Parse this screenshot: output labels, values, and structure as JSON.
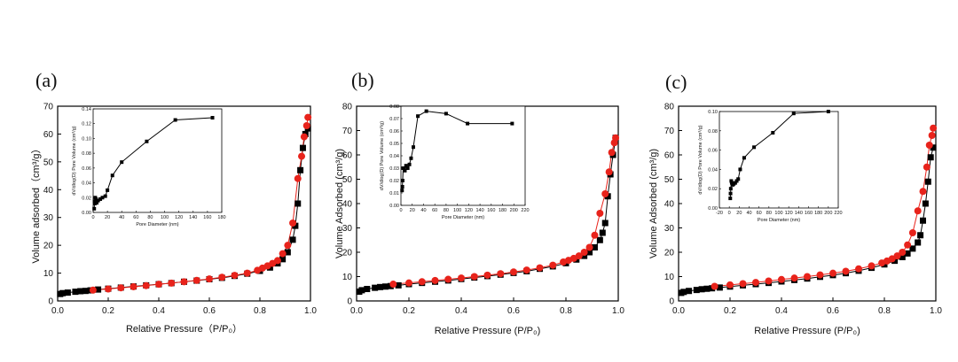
{
  "chart_data": [
    {
      "type": "scatter",
      "panel_label": "(a)",
      "xlabel": "Relative Pressure（P/P₀）",
      "ylabel": "Volume adsorbed（cm³/g）",
      "xlim": [
        0,
        1.0
      ],
      "ylim": [
        0,
        70
      ],
      "xticks": [
        "0.0",
        "0.2",
        "0.4",
        "0.6",
        "0.8",
        "1.0"
      ],
      "yticks": [
        "0",
        "10",
        "20",
        "30",
        "40",
        "50",
        "60",
        "70"
      ],
      "series": [
        {
          "name": "adsorption",
          "marker": "square",
          "color": "#000000",
          "x": [
            0.01,
            0.02,
            0.04,
            0.07,
            0.09,
            0.11,
            0.13,
            0.16,
            0.2,
            0.25,
            0.3,
            0.35,
            0.4,
            0.45,
            0.5,
            0.55,
            0.6,
            0.65,
            0.7,
            0.75,
            0.8,
            0.84,
            0.87,
            0.89,
            0.91,
            0.93,
            0.94,
            0.95,
            0.96,
            0.97,
            0.98,
            0.99
          ],
          "y": [
            2.5,
            2.8,
            3.0,
            3.3,
            3.5,
            3.6,
            3.8,
            4.1,
            4.4,
            4.8,
            5.2,
            5.6,
            6.0,
            6.4,
            6.9,
            7.3,
            7.8,
            8.3,
            9.0,
            9.8,
            10.8,
            12.0,
            13.5,
            15.0,
            17.5,
            22.0,
            27.0,
            35.0,
            47.0,
            55.0,
            60.0,
            62.0
          ]
        },
        {
          "name": "desorption",
          "marker": "circle",
          "color": "#e8231b",
          "x": [
            0.99,
            0.985,
            0.975,
            0.965,
            0.95,
            0.93,
            0.91,
            0.89,
            0.87,
            0.85,
            0.83,
            0.81,
            0.79,
            0.75,
            0.7,
            0.65,
            0.6,
            0.55,
            0.5,
            0.45,
            0.4,
            0.35,
            0.3,
            0.25,
            0.2,
            0.14
          ],
          "y": [
            66.0,
            63.0,
            59.0,
            52.0,
            44.0,
            28.0,
            20.0,
            17.0,
            14.5,
            13.5,
            12.6,
            11.8,
            11.0,
            10.0,
            9.2,
            8.5,
            7.9,
            7.4,
            6.9,
            6.4,
            6.0,
            5.5,
            5.1,
            4.7,
            4.3,
            3.9
          ]
        }
      ],
      "inset": {
        "type": "line",
        "xlabel": "Pore Diameter (nm)",
        "ylabel": "dV/dlog(D) Pore Volume (cm³/g)",
        "xlim": [
          0,
          180
        ],
        "ylim": [
          0,
          0.14
        ],
        "xticks": [
          "0",
          "20",
          "40",
          "60",
          "80",
          "100",
          "120",
          "140",
          "160",
          "180"
        ],
        "yticks": [
          "0.00",
          "0.02",
          "0.04",
          "0.06",
          "0.08",
          "0.10",
          "0.12",
          "0.14"
        ],
        "x": [
          1.5,
          2,
          2.5,
          3,
          4,
          5,
          7,
          10,
          13,
          17,
          20,
          27,
          40,
          75,
          115,
          167
        ],
        "y": [
          0.005,
          0.015,
          0.012,
          0.02,
          0.018,
          0.013,
          0.016,
          0.018,
          0.02,
          0.022,
          0.03,
          0.05,
          0.068,
          0.096,
          0.125,
          0.128
        ]
      }
    },
    {
      "type": "scatter",
      "panel_label": "(b)",
      "xlabel": "Relative Pressure (P/P₀)",
      "ylabel": "Volume Adsorbed (cm³/g)",
      "xlim": [
        0,
        1.0
      ],
      "ylim": [
        0,
        80
      ],
      "xticks": [
        "0.0",
        "0.2",
        "0.4",
        "0.6",
        "0.8",
        "1.0"
      ],
      "yticks": [
        "0",
        "10",
        "20",
        "30",
        "40",
        "50",
        "60",
        "70",
        "80"
      ],
      "series": [
        {
          "name": "adsorption",
          "marker": "square",
          "color": "#000000",
          "x": [
            0.01,
            0.02,
            0.04,
            0.07,
            0.09,
            0.11,
            0.13,
            0.16,
            0.2,
            0.25,
            0.3,
            0.35,
            0.4,
            0.45,
            0.5,
            0.55,
            0.6,
            0.65,
            0.7,
            0.75,
            0.8,
            0.84,
            0.87,
            0.89,
            0.91,
            0.93,
            0.94,
            0.95,
            0.96,
            0.97,
            0.98,
            0.99
          ],
          "y": [
            3.8,
            4.4,
            4.9,
            5.4,
            5.7,
            5.9,
            6.1,
            6.4,
            6.9,
            7.4,
            7.9,
            8.4,
            9.0,
            9.6,
            10.2,
            10.8,
            11.5,
            12.2,
            13.2,
            14.2,
            15.5,
            17.0,
            18.5,
            20.0,
            22.0,
            25.0,
            28.0,
            32.0,
            43.0,
            52.0,
            60.0,
            67.0
          ]
        },
        {
          "name": "desorption",
          "marker": "circle",
          "color": "#e8231b",
          "x": [
            0.99,
            0.985,
            0.975,
            0.965,
            0.95,
            0.93,
            0.91,
            0.89,
            0.87,
            0.85,
            0.83,
            0.81,
            0.79,
            0.75,
            0.7,
            0.65,
            0.6,
            0.55,
            0.5,
            0.45,
            0.4,
            0.35,
            0.3,
            0.25,
            0.2,
            0.14
          ],
          "y": [
            67.0,
            65.0,
            61.0,
            53.0,
            44.0,
            36.0,
            27.0,
            22.0,
            20.0,
            18.5,
            17.5,
            16.7,
            16.0,
            14.7,
            13.6,
            12.7,
            11.9,
            11.2,
            10.6,
            10.0,
            9.4,
            8.9,
            8.4,
            7.9,
            7.4,
            6.9
          ]
        }
      ],
      "inset": {
        "type": "line",
        "xlabel": "Pore Diameter (nm)",
        "ylabel": "dV/dlog(D) Pore Volume (cm³/g)",
        "xlim": [
          0,
          220
        ],
        "ylim": [
          0,
          0.08
        ],
        "xticks": [
          "0",
          "20",
          "40",
          "60",
          "80",
          "100",
          "120",
          "140",
          "160",
          "180",
          "200",
          "220"
        ],
        "yticks": [
          "0.00",
          "0.01",
          "0.02",
          "0.03",
          "0.04",
          "0.05",
          "0.06",
          "0.07",
          "0.08"
        ],
        "x": [
          2,
          2.5,
          3,
          4,
          5,
          7,
          9,
          12,
          15,
          18,
          22,
          30,
          45,
          80,
          118,
          197
        ],
        "y": [
          0.012,
          0.015,
          0.02,
          0.03,
          0.03,
          0.028,
          0.032,
          0.03,
          0.033,
          0.038,
          0.047,
          0.072,
          0.076,
          0.074,
          0.066,
          0.066
        ]
      }
    },
    {
      "type": "scatter",
      "panel_label": "(c)",
      "xlabel": "Relative Pressure (P/P₀)",
      "ylabel": "Volume Adsorbed (cm³/g)",
      "xlim": [
        0,
        1.0
      ],
      "ylim": [
        0,
        80
      ],
      "xticks": [
        "0.0",
        "0.2",
        "0.4",
        "0.6",
        "0.8",
        "1.0"
      ],
      "yticks": [
        "0",
        "10",
        "20",
        "30",
        "40",
        "50",
        "60",
        "70",
        "80"
      ],
      "series": [
        {
          "name": "adsorption",
          "marker": "square",
          "color": "#000000",
          "x": [
            0.01,
            0.02,
            0.04,
            0.07,
            0.09,
            0.11,
            0.13,
            0.16,
            0.2,
            0.25,
            0.3,
            0.35,
            0.4,
            0.45,
            0.5,
            0.55,
            0.6,
            0.65,
            0.7,
            0.75,
            0.8,
            0.84,
            0.87,
            0.89,
            0.91,
            0.93,
            0.94,
            0.95,
            0.96,
            0.97,
            0.98,
            0.99
          ],
          "y": [
            3.3,
            3.7,
            4.1,
            4.5,
            4.8,
            5.0,
            5.2,
            5.5,
            5.9,
            6.4,
            6.9,
            7.4,
            8.0,
            8.6,
            9.2,
            9.9,
            10.6,
            11.4,
            12.4,
            13.6,
            15.0,
            16.5,
            18.0,
            19.5,
            21.5,
            24.0,
            27.0,
            33.0,
            40.0,
            49.0,
            59.0,
            63.0
          ]
        },
        {
          "name": "desorption",
          "marker": "circle",
          "color": "#e8231b",
          "x": [
            0.99,
            0.985,
            0.975,
            0.965,
            0.95,
            0.93,
            0.91,
            0.89,
            0.87,
            0.85,
            0.83,
            0.81,
            0.79,
            0.75,
            0.7,
            0.65,
            0.6,
            0.55,
            0.5,
            0.45,
            0.4,
            0.35,
            0.3,
            0.25,
            0.2,
            0.14
          ],
          "y": [
            71.0,
            68.0,
            64.0,
            55.0,
            45.0,
            37.0,
            28.0,
            23.0,
            20.0,
            18.5,
            17.3,
            16.4,
            15.6,
            14.4,
            13.2,
            12.2,
            11.4,
            10.7,
            10.0,
            9.4,
            8.8,
            8.2,
            7.6,
            7.1,
            6.6,
            6.0
          ]
        }
      ],
      "inset": {
        "type": "line",
        "xlabel": "Pore Diameter (nm)",
        "ylabel": "dV/dlog(D) Pore Volume (cm³/g)",
        "xlim": [
          -20,
          220
        ],
        "ylim": [
          0,
          0.1
        ],
        "xticks": [
          "-20",
          "0",
          "20",
          "40",
          "60",
          "80",
          "100",
          "120",
          "140",
          "160",
          "180",
          "200",
          "220"
        ],
        "yticks": [
          "0.00",
          "0.02",
          "0.04",
          "0.06",
          "0.08",
          "0.10"
        ],
        "x": [
          2,
          2.5,
          3,
          4,
          5,
          7,
          9,
          12,
          15,
          18,
          22,
          30,
          50,
          88,
          130,
          200
        ],
        "y": [
          0.01,
          0.015,
          0.02,
          0.028,
          0.026,
          0.024,
          0.025,
          0.026,
          0.028,
          0.03,
          0.04,
          0.052,
          0.063,
          0.078,
          0.098,
          0.1
        ]
      }
    }
  ]
}
